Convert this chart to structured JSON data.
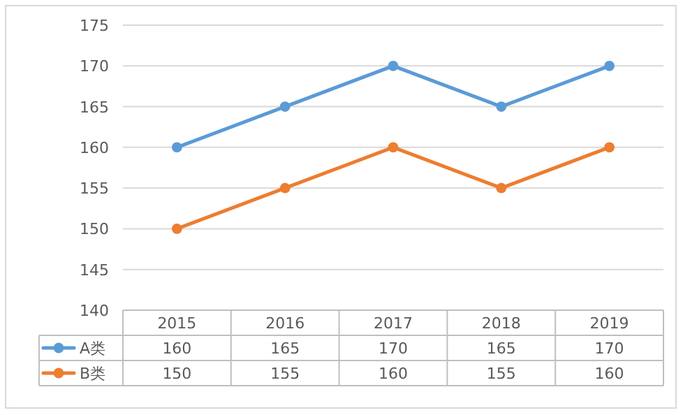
{
  "chart_data": {
    "type": "line",
    "categories": [
      "2015",
      "2016",
      "2017",
      "2018",
      "2019"
    ],
    "series": [
      {
        "name": "A类",
        "color": "#5b9bd5",
        "values": [
          160,
          165,
          170,
          165,
          170
        ]
      },
      {
        "name": "B类",
        "color": "#ed7d31",
        "values": [
          150,
          155,
          160,
          155,
          160
        ]
      }
    ],
    "ylim": [
      140,
      175
    ],
    "yticks": [
      140,
      145,
      150,
      155,
      160,
      165,
      170,
      175
    ],
    "grid": "y",
    "marker": "circle",
    "line_style": "solid",
    "data_labels": true,
    "legend": "bottom"
  }
}
